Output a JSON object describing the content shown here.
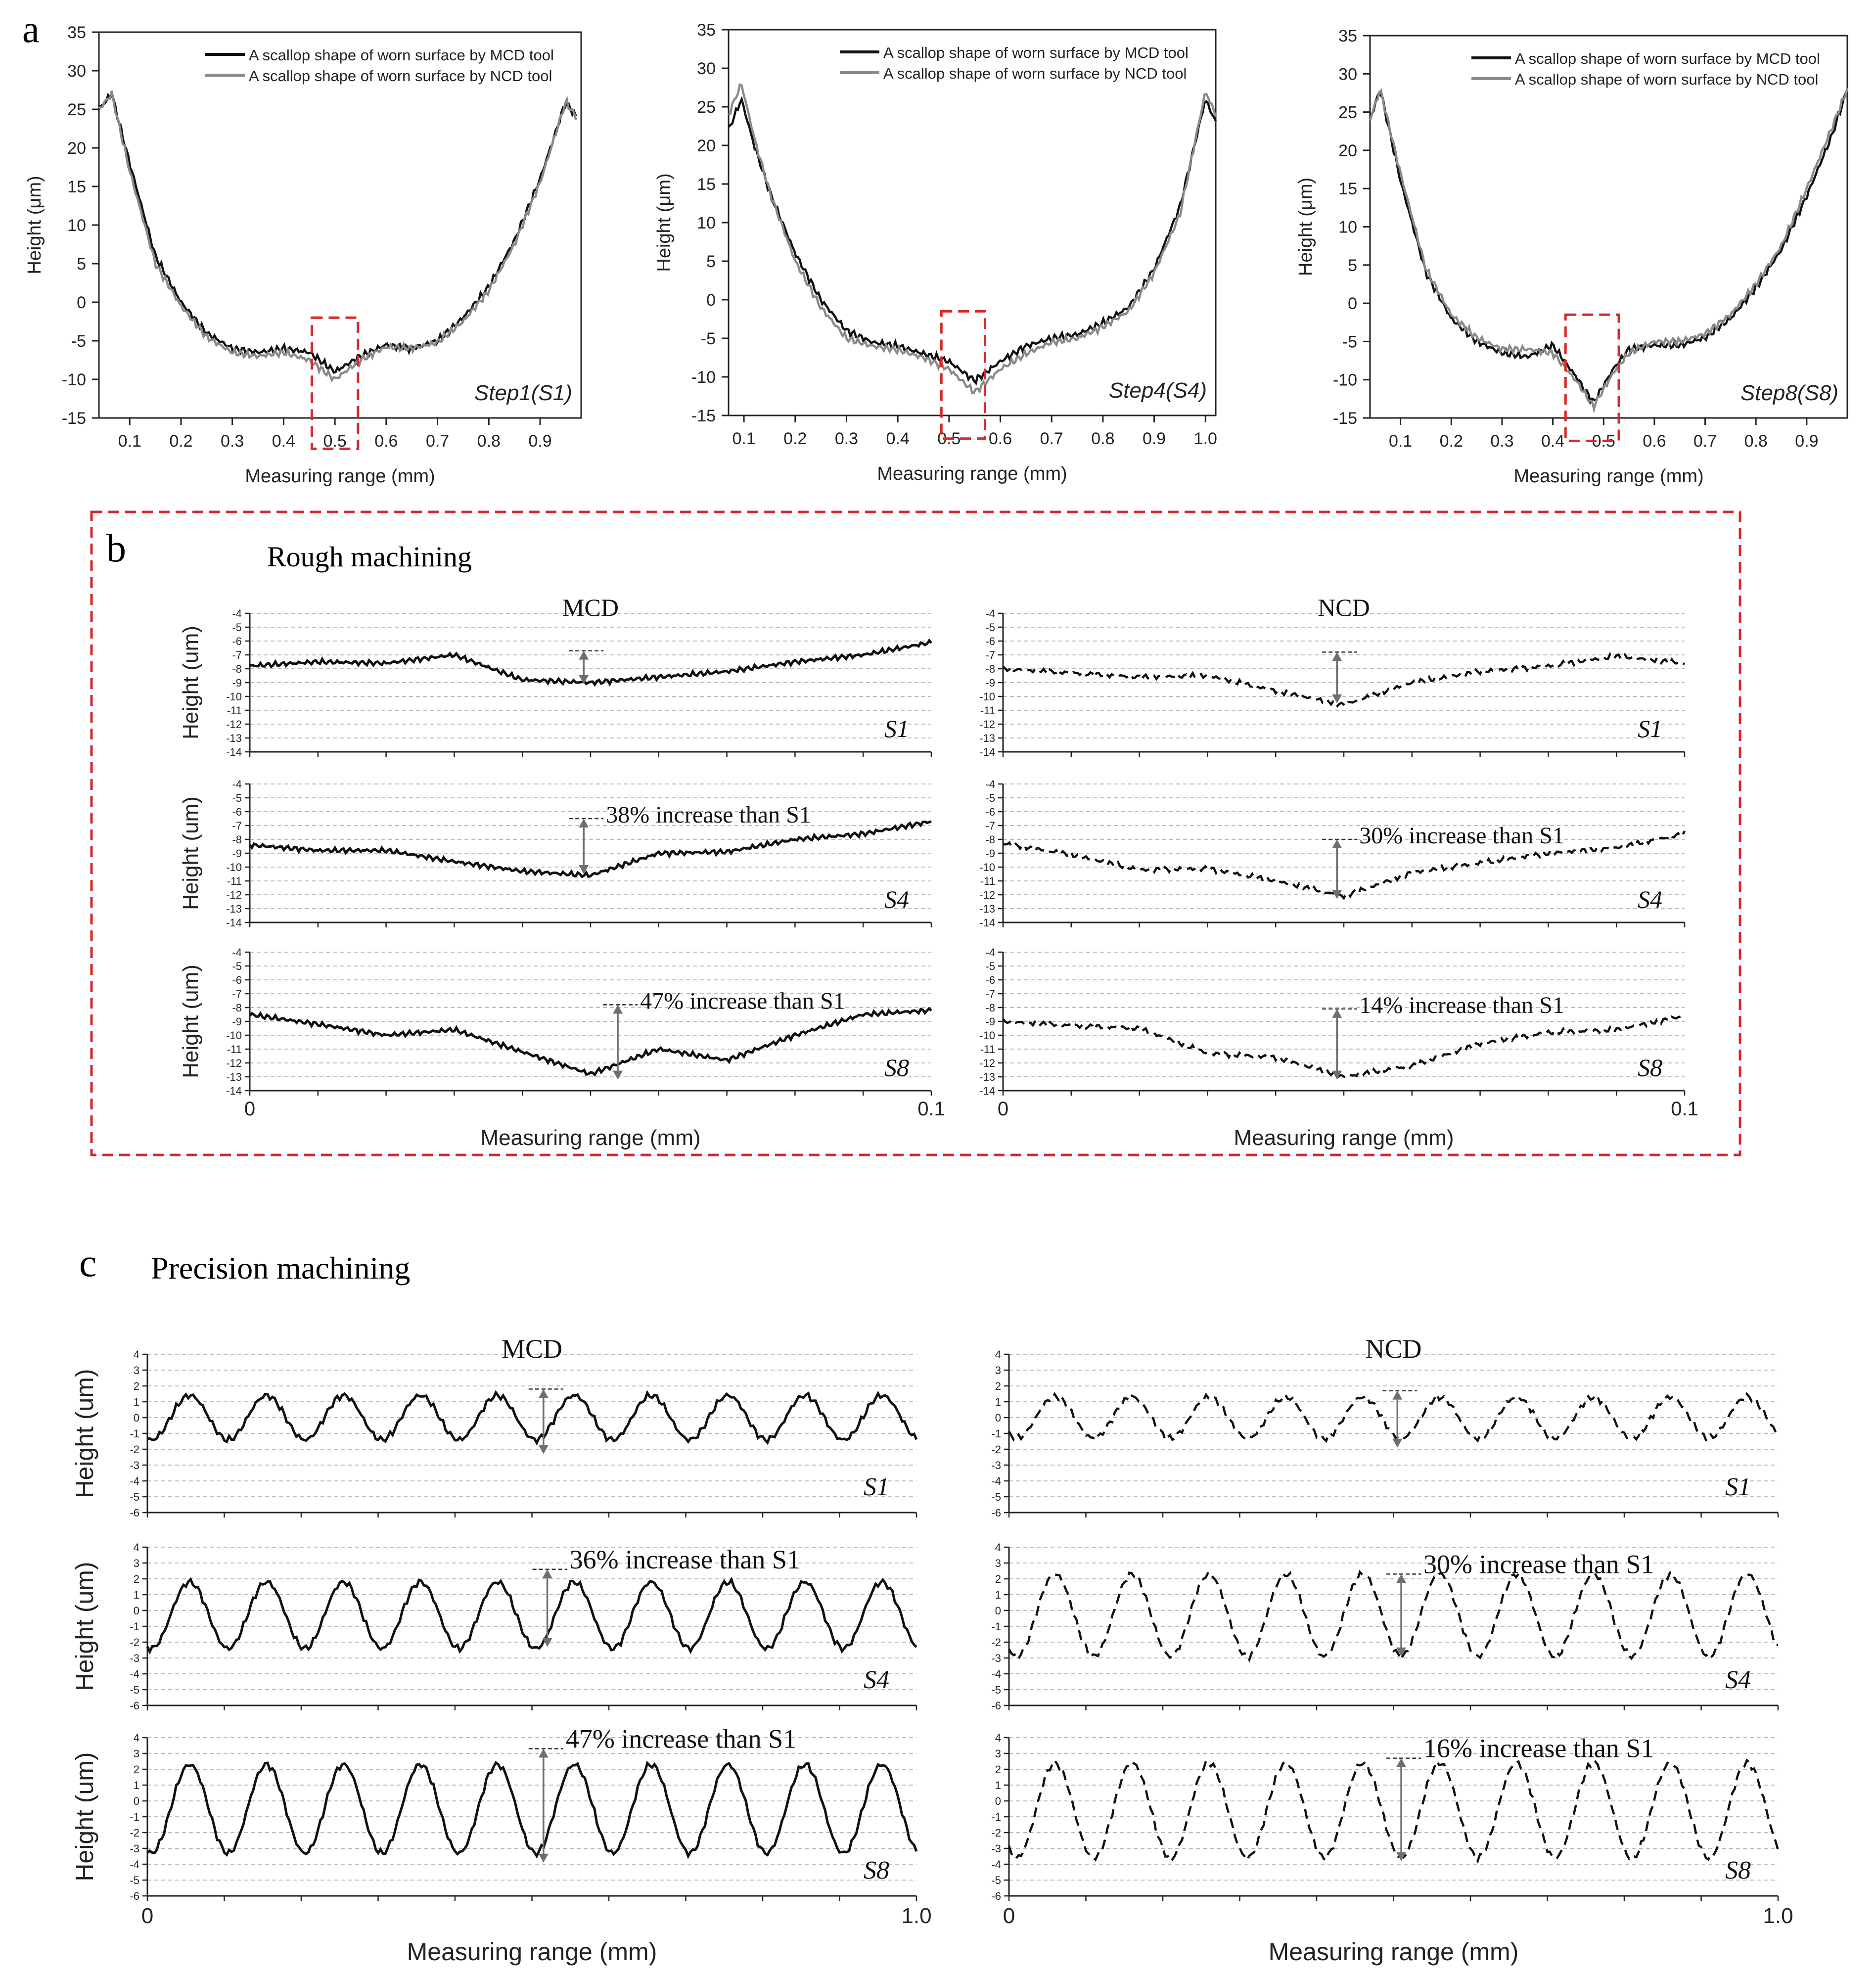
{
  "figure": {
    "panel_a_label": "a",
    "panel_b_label": "b",
    "panel_c_label": "c",
    "panel_b_title": "Rough machining",
    "panel_c_title": "Precision machining",
    "col_mcd": "MCD",
    "col_ncd": "NCD",
    "b_xlabel": "Measuring range (mm)",
    "c_xlabel": "Measuring range (mm)",
    "b_x_start": "0",
    "b_x_end": "0.1",
    "c_x_start": "0",
    "c_x_end": "1.0",
    "ylabel_um": "Height (um)",
    "colors": {
      "mcd": "#111111",
      "ncd": "#8a8a8a",
      "box": "#d42a2a",
      "arrow": "#6e6e6e",
      "grid": "#bdbdbd"
    }
  },
  "chart_data": [
    {
      "id": "a1",
      "type": "line",
      "step_label": "Step1(S1)",
      "xlabel": "Measuring range (mm)",
      "ylabel": "Height (μm)",
      "xlim": [
        0.04,
        0.98
      ],
      "ylim": [
        -15,
        35
      ],
      "xticks": [
        "0.1",
        "0.2",
        "0.3",
        "0.4",
        "0.5",
        "0.6",
        "0.7",
        "0.8",
        "0.9"
      ],
      "yticks": [
        "-15",
        "-10",
        "-5",
        "0",
        "5",
        "10",
        "15",
        "20",
        "25",
        "30",
        "35"
      ],
      "legend": [
        "A scallop shape of worn surface by MCD tool",
        "A scallop shape of worn surface by NCD tool"
      ],
      "series": [
        {
          "name": "MCD",
          "x": [
            0.04,
            0.065,
            0.1,
            0.15,
            0.2,
            0.25,
            0.3,
            0.35,
            0.4,
            0.45,
            0.5,
            0.55,
            0.6,
            0.65,
            0.7,
            0.75,
            0.8,
            0.85,
            0.9,
            0.95,
            0.97
          ],
          "y": [
            25,
            27,
            18,
            6,
            0,
            -4,
            -6,
            -6.5,
            -6,
            -6.5,
            -9,
            -7,
            -5.5,
            -6,
            -5,
            -2,
            2,
            8,
            16,
            26,
            24
          ]
        },
        {
          "name": "NCD",
          "x": [
            0.04,
            0.065,
            0.1,
            0.15,
            0.2,
            0.25,
            0.3,
            0.35,
            0.4,
            0.45,
            0.5,
            0.55,
            0.6,
            0.65,
            0.7,
            0.75,
            0.8,
            0.85,
            0.9,
            0.95,
            0.97
          ],
          "y": [
            25,
            27,
            17,
            5,
            -0.5,
            -4.5,
            -6.5,
            -7,
            -6.5,
            -7.5,
            -10,
            -7.5,
            -5.8,
            -6,
            -5.2,
            -2.5,
            1.5,
            7.5,
            15.5,
            26,
            24
          ]
        }
      ],
      "highlight": {
        "x": [
          0.455,
          0.545
        ],
        "y": [
          -19,
          -2
        ]
      }
    },
    {
      "id": "a2",
      "type": "line",
      "step_label": "Step4(S4)",
      "xlabel": "Measuring range (mm)",
      "ylabel": "Height (μm)",
      "xlim": [
        0.07,
        1.02
      ],
      "ylim": [
        -15,
        35
      ],
      "xticks": [
        "0.1",
        "0.2",
        "0.3",
        "0.4",
        "0.5",
        "0.6",
        "0.7",
        "0.8",
        "0.9",
        "1.0"
      ],
      "yticks": [
        "-15",
        "-10",
        "-5",
        "0",
        "5",
        "10",
        "15",
        "20",
        "25",
        "30",
        "35"
      ],
      "legend": [
        "A scallop shape of worn surface by MCD tool",
        "A scallop shape of worn surface by NCD tool"
      ],
      "series": [
        {
          "name": "MCD",
          "x": [
            0.07,
            0.095,
            0.12,
            0.15,
            0.2,
            0.25,
            0.3,
            0.35,
            0.4,
            0.45,
            0.5,
            0.55,
            0.6,
            0.65,
            0.7,
            0.75,
            0.8,
            0.85,
            0.9,
            0.95,
            1.0,
            1.02
          ],
          "y": [
            22,
            26,
            20,
            14,
            6,
            0,
            -4,
            -5.5,
            -6,
            -7,
            -8,
            -10.5,
            -8,
            -6,
            -5,
            -4.5,
            -3,
            -1,
            4,
            12,
            26,
            23
          ]
        },
        {
          "name": "NCD",
          "x": [
            0.07,
            0.095,
            0.12,
            0.15,
            0.2,
            0.25,
            0.3,
            0.35,
            0.4,
            0.45,
            0.5,
            0.55,
            0.6,
            0.65,
            0.7,
            0.75,
            0.8,
            0.85,
            0.9,
            0.95,
            1.0,
            1.02
          ],
          "y": [
            24,
            28,
            21,
            14,
            5,
            -1,
            -5,
            -6,
            -6.5,
            -7.5,
            -9,
            -12,
            -9,
            -7,
            -5.5,
            -5,
            -3.5,
            -1.5,
            3.5,
            11,
            27,
            24
          ]
        }
      ],
      "highlight": {
        "x": [
          0.485,
          0.57
        ],
        "y": [
          -18,
          -1.5
        ]
      }
    },
    {
      "id": "a3",
      "type": "line",
      "step_label": "Step8(S8)",
      "xlabel": "Measuring range (mm)",
      "ylabel": "Height (μm)",
      "xlim": [
        0.04,
        0.98
      ],
      "ylim": [
        -15,
        35
      ],
      "xticks": [
        "0.1",
        "0.2",
        "0.3",
        "0.4",
        "0.5",
        "0.6",
        "0.7",
        "0.8",
        "0.9"
      ],
      "yticks": [
        "-15",
        "-10",
        "-5",
        "0",
        "5",
        "10",
        "15",
        "20",
        "25",
        "30",
        "35"
      ],
      "legend": [
        "A scallop shape of worn surface by MCD tool",
        "A scallop shape of worn surface by NCD tool"
      ],
      "series": [
        {
          "name": "MCD",
          "x": [
            0.04,
            0.06,
            0.1,
            0.15,
            0.2,
            0.25,
            0.3,
            0.35,
            0.4,
            0.45,
            0.48,
            0.52,
            0.55,
            0.6,
            0.65,
            0.7,
            0.75,
            0.8,
            0.85,
            0.9,
            0.95,
            0.98
          ],
          "y": [
            24,
            28,
            16,
            4,
            -2,
            -5,
            -6.5,
            -7,
            -5.5,
            -10,
            -13,
            -8.5,
            -6,
            -5.5,
            -5.5,
            -4.5,
            -2,
            2,
            7,
            14,
            22,
            28
          ]
        },
        {
          "name": "NCD",
          "x": [
            0.04,
            0.06,
            0.1,
            0.15,
            0.2,
            0.25,
            0.3,
            0.35,
            0.4,
            0.45,
            0.48,
            0.52,
            0.55,
            0.6,
            0.65,
            0.7,
            0.75,
            0.8,
            0.85,
            0.9,
            0.95,
            0.98
          ],
          "y": [
            24,
            28,
            17,
            4.5,
            -1.5,
            -4.5,
            -6,
            -6,
            -6.5,
            -10.5,
            -13.5,
            -9,
            -6.5,
            -5,
            -5,
            -4,
            -1.5,
            2.5,
            7.5,
            15,
            23,
            28
          ]
        }
      ],
      "highlight": {
        "x": [
          0.425,
          0.53
        ],
        "y": [
          -18,
          -1.5
        ]
      }
    },
    {
      "id": "b",
      "type": "line",
      "title": "Rough machining",
      "xlabel": "Measuring range (mm)",
      "xlim": [
        0,
        0.1
      ],
      "ylim": [
        -14,
        -4
      ],
      "yticks": [
        "-4",
        "-5",
        "-6",
        "-7",
        "-8",
        "-9",
        "-10",
        "-11",
        "-12",
        "-13",
        "-14"
      ],
      "rows": [
        {
          "label": "S1",
          "mcd": {
            "x": [
              0,
              0.01,
              0.02,
              0.03,
              0.04,
              0.05,
              0.06,
              0.07,
              0.08,
              0.09,
              0.1
            ],
            "y": [
              -7.8,
              -7.5,
              -7.6,
              -7,
              -8.8,
              -9,
              -8.6,
              -8.2,
              -7.5,
              -7,
              -6.1
            ]
          },
          "ncd": {
            "x": [
              0,
              0.01,
              0.02,
              0.03,
              0.04,
              0.05,
              0.06,
              0.07,
              0.08,
              0.09,
              0.1
            ],
            "y": [
              -8,
              -8.3,
              -8.6,
              -8.5,
              -9.6,
              -10.6,
              -9,
              -8.2,
              -7.8,
              -7.1,
              -7.6
            ]
          },
          "mcd_arrow": {
            "x": 0.049,
            "top": -6.7,
            "bottom": -9.1
          },
          "ncd_arrow": {
            "x": 0.049,
            "top": -6.8,
            "bottom": -10.5
          }
        },
        {
          "label": "S4",
          "mcd": {
            "x": [
              0,
              0.01,
              0.02,
              0.03,
              0.04,
              0.05,
              0.06,
              0.07,
              0.08,
              0.09,
              0.1
            ],
            "y": [
              -8.4,
              -8.8,
              -8.8,
              -9.6,
              -10.3,
              -10.6,
              -9,
              -8.9,
              -8,
              -7.6,
              -6.7
            ]
          },
          "ncd": {
            "x": [
              0,
              0.01,
              0.02,
              0.03,
              0.04,
              0.05,
              0.06,
              0.07,
              0.08,
              0.09,
              0.1
            ],
            "y": [
              -8.3,
              -9.1,
              -10.2,
              -10.1,
              -11,
              -12.1,
              -10.4,
              -9.7,
              -9,
              -8.6,
              -7.6
            ]
          },
          "mcd_arrow": {
            "x": 0.049,
            "top": -6.5,
            "bottom": -10.5,
            "label": "38% increase  than S1"
          },
          "ncd_arrow": {
            "x": 0.049,
            "top": -8,
            "bottom": -12.3,
            "label": "30% increase  than S1"
          }
        },
        {
          "label": "S8",
          "mcd": {
            "x": [
              0,
              0.01,
              0.02,
              0.03,
              0.04,
              0.05,
              0.06,
              0.07,
              0.08,
              0.09,
              0.1
            ],
            "y": [
              -8.5,
              -9.2,
              -10,
              -9.6,
              -11.2,
              -12.8,
              -11,
              -11.8,
              -10,
              -8.5,
              -8.2
            ]
          },
          "ncd": {
            "x": [
              0,
              0.01,
              0.02,
              0.03,
              0.04,
              0.05,
              0.06,
              0.07,
              0.08,
              0.09,
              0.1
            ],
            "y": [
              -9,
              -9.3,
              -9.5,
              -11.3,
              -11.6,
              -13,
              -12.2,
              -10.6,
              -9.8,
              -9.6,
              -8.6
            ]
          },
          "mcd_arrow": {
            "x": 0.054,
            "top": -7.8,
            "bottom": -13.2,
            "label": "47% increase  than S1"
          },
          "ncd_arrow": {
            "x": 0.049,
            "top": -8.1,
            "bottom": -13.2,
            "label": "14% increase  than S1"
          }
        }
      ]
    },
    {
      "id": "c",
      "type": "line",
      "title": "Precision machining",
      "xlabel": "Measuring range (mm)",
      "xlim": [
        0,
        1.0
      ],
      "ylim": [
        -6,
        4
      ],
      "yticks": [
        "4",
        "3",
        "2",
        "1",
        "0",
        "-1",
        "-2",
        "-3",
        "-4",
        "-5",
        "-6"
      ],
      "rows": [
        {
          "label": "S1",
          "mcd": {
            "period": 0.1,
            "amplitude": 1.4,
            "offset": 0,
            "phase": 0.055
          },
          "ncd": {
            "period": 0.1,
            "amplitude": 1.3,
            "offset": 0,
            "phase": 0.06
          },
          "mcd_arrow": {
            "x": 0.515,
            "top": 1.8,
            "bottom": -2.3
          },
          "ncd_arrow": {
            "x": 0.505,
            "top": 1.7,
            "bottom": -1.9
          }
        },
        {
          "label": "S4",
          "mcd": {
            "period": 0.1,
            "amplitude": 2.1,
            "offset": -0.3,
            "phase": 0.055
          },
          "ncd": {
            "period": 0.1,
            "amplitude": 2.6,
            "offset": -0.3,
            "phase": 0.06
          },
          "mcd_arrow": {
            "x": 0.52,
            "top": 2.6,
            "bottom": -2.3,
            "label": "36% increase than S1"
          },
          "ncd_arrow": {
            "x": 0.51,
            "top": 2.3,
            "bottom": -2.9,
            "label": "30% increase than S1"
          }
        },
        {
          "label": "S8",
          "mcd": {
            "period": 0.1,
            "amplitude": 2.8,
            "offset": -0.5,
            "phase": 0.055
          },
          "ncd": {
            "period": 0.1,
            "amplitude": 3.0,
            "offset": -0.6,
            "phase": 0.06
          },
          "mcd_arrow": {
            "x": 0.515,
            "top": 3.3,
            "bottom": -3.9,
            "label": "47% increase than S1"
          },
          "ncd_arrow": {
            "x": 0.51,
            "top": 2.7,
            "bottom": -3.8,
            "label": "16% increase than S1"
          }
        }
      ]
    }
  ]
}
